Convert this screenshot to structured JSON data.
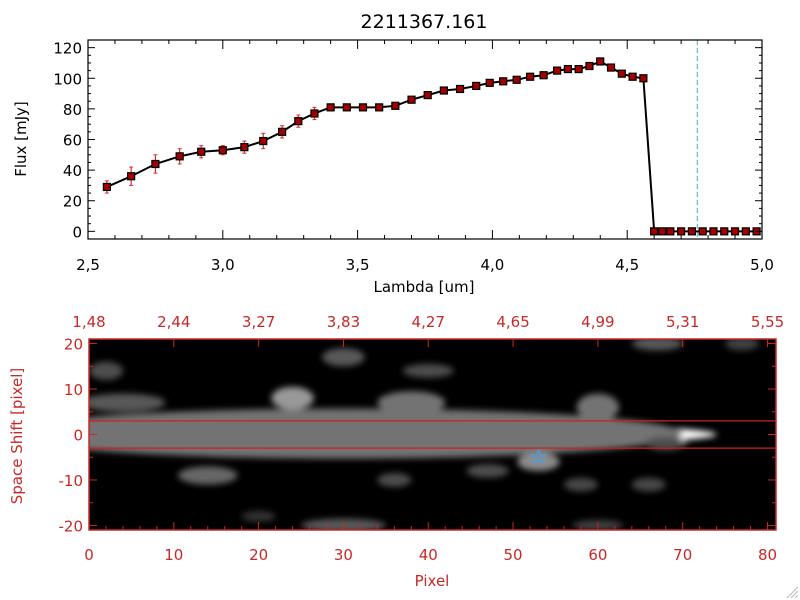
{
  "chart_data": [
    {
      "type": "line",
      "title": "2211367.161",
      "xlabel": "Lambda [um]",
      "ylabel": "Flux [mJy]",
      "xlim": [
        2.5,
        5.0
      ],
      "ylim": [
        -5,
        125
      ],
      "xticks": [
        "2.5",
        "3.0",
        "3.5",
        "4.0",
        "4.5",
        "5.0"
      ],
      "yticks": [
        "0",
        "20",
        "40",
        "60",
        "80",
        "100",
        "120"
      ],
      "colors": {
        "line": "#000000",
        "marker": "#a00000",
        "errorbar": "#d03030",
        "vline": "#4aa6c9",
        "baseline": "#d03030"
      },
      "cutoff_wavelength": 4.76,
      "series": [
        {
          "name": "flux",
          "x": [
            2.57,
            2.66,
            2.75,
            2.84,
            2.92,
            3.0,
            3.08,
            3.15,
            3.22,
            3.28,
            3.34,
            3.4,
            3.46,
            3.52,
            3.58,
            3.64,
            3.7,
            3.76,
            3.82,
            3.88,
            3.94,
            3.99,
            4.04,
            4.09,
            4.14,
            4.19,
            4.24,
            4.28,
            4.32,
            4.36,
            4.4,
            4.44,
            4.48,
            4.52,
            4.56,
            4.6,
            4.63,
            4.66,
            4.7,
            4.74,
            4.78,
            4.82,
            4.86,
            4.9,
            4.94,
            4.98
          ],
          "y": [
            29,
            36,
            44,
            49,
            52,
            53,
            55,
            59,
            65,
            72,
            77,
            81,
            81,
            81,
            81,
            82,
            86,
            89,
            92,
            93,
            95,
            97,
            98,
            99,
            101,
            102,
            105,
            106,
            106,
            108,
            111,
            107,
            103,
            101,
            100,
            0,
            0,
            0,
            0,
            0,
            0,
            0,
            0,
            0,
            0,
            0
          ],
          "error": [
            4,
            6,
            6,
            5,
            4,
            3,
            4,
            5,
            4,
            4,
            4,
            2,
            2,
            2,
            2,
            2,
            2,
            2,
            2,
            2,
            2,
            2,
            2,
            2,
            2,
            2,
            2,
            2,
            2,
            2,
            2,
            2,
            2,
            2,
            2,
            0,
            0,
            0,
            0,
            0,
            0,
            0,
            0,
            0,
            0,
            0
          ]
        }
      ]
    },
    {
      "type": "heatmap",
      "xlabel": "Pixel",
      "ylabel": "Space Shift [pixel]",
      "xlim": [
        0,
        81
      ],
      "ylim": [
        -21,
        21
      ],
      "xticks": [
        "0",
        "10",
        "20",
        "30",
        "40",
        "50",
        "60",
        "70",
        "80"
      ],
      "yticks": [
        "-20",
        "-10",
        "0",
        "10",
        "20"
      ],
      "top_axis_ticks": [
        {
          "pixel": 0,
          "label": "1.48"
        },
        {
          "pixel": 10,
          "label": "2.44"
        },
        {
          "pixel": 20,
          "label": "3.27"
        },
        {
          "pixel": 30,
          "label": "3.83"
        },
        {
          "pixel": 40,
          "label": "4.27"
        },
        {
          "pixel": 50,
          "label": "4.65"
        },
        {
          "pixel": 60,
          "label": "4.99"
        },
        {
          "pixel": 70,
          "label": "5.31"
        },
        {
          "pixel": 80,
          "label": "5.55"
        }
      ],
      "extraction_aperture": [
        -3,
        3
      ],
      "source_marker": {
        "pixel": 53,
        "shift": -5
      },
      "colors": {
        "axis": "#c82828",
        "aperture": "#d02020",
        "marker": "#4a9ee0"
      },
      "blobs": [
        {
          "x": 40,
          "y": 0,
          "rx": 34,
          "ry": 2.6,
          "intensity": 1.0
        },
        {
          "x": 14,
          "y": 0,
          "rx": 6,
          "ry": 1.6,
          "intensity": 1.0
        },
        {
          "x": 30,
          "y": 0.2,
          "rx": 40,
          "ry": 5.5,
          "intensity": 0.45
        },
        {
          "x": 24,
          "y": 8,
          "rx": 2.5,
          "ry": 2.5,
          "intensity": 0.6
        },
        {
          "x": 38,
          "y": 7,
          "rx": 4,
          "ry": 2.5,
          "intensity": 0.45
        },
        {
          "x": 60,
          "y": 6,
          "rx": 2.5,
          "ry": 3,
          "intensity": 0.45
        },
        {
          "x": 4,
          "y": 7,
          "rx": 5,
          "ry": 2,
          "intensity": 0.35
        },
        {
          "x": 2,
          "y": 14,
          "rx": 2,
          "ry": 2,
          "intensity": 0.3
        },
        {
          "x": 30,
          "y": 17,
          "rx": 2.5,
          "ry": 2,
          "intensity": 0.35
        },
        {
          "x": 40,
          "y": 14,
          "rx": 3,
          "ry": 1.5,
          "intensity": 0.3
        },
        {
          "x": 67,
          "y": 20,
          "rx": 3,
          "ry": 1.5,
          "intensity": 0.35
        },
        {
          "x": 77,
          "y": 20,
          "rx": 2,
          "ry": 1.5,
          "intensity": 0.25
        },
        {
          "x": 14,
          "y": -9,
          "rx": 3.5,
          "ry": 2,
          "intensity": 0.4
        },
        {
          "x": 53,
          "y": -6,
          "rx": 2.5,
          "ry": 2,
          "intensity": 0.55
        },
        {
          "x": 47,
          "y": -8,
          "rx": 2.5,
          "ry": 1.5,
          "intensity": 0.3
        },
        {
          "x": 36,
          "y": -10,
          "rx": 2,
          "ry": 1.5,
          "intensity": 0.3
        },
        {
          "x": 58,
          "y": -11,
          "rx": 2,
          "ry": 1.5,
          "intensity": 0.28
        },
        {
          "x": 66,
          "y": -11,
          "rx": 2,
          "ry": 1.5,
          "intensity": 0.28
        },
        {
          "x": 30,
          "y": -20,
          "rx": 5,
          "ry": 1.5,
          "intensity": 0.35
        },
        {
          "x": 20,
          "y": -18,
          "rx": 2,
          "ry": 1.2,
          "intensity": 0.2
        },
        {
          "x": 60,
          "y": -20,
          "rx": 3,
          "ry": 1.2,
          "intensity": 0.25
        },
        {
          "x": 68,
          "y": -2,
          "rx": 2.5,
          "ry": 1.5,
          "intensity": 0.3
        }
      ]
    }
  ]
}
